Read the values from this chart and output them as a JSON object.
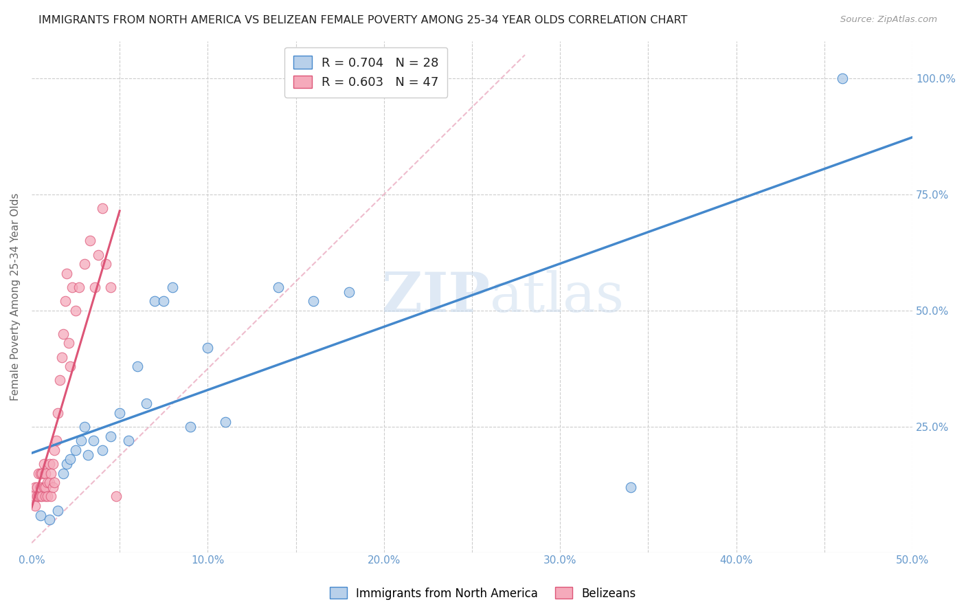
{
  "title": "IMMIGRANTS FROM NORTH AMERICA VS BELIZEAN FEMALE POVERTY AMONG 25-34 YEAR OLDS CORRELATION CHART",
  "source": "Source: ZipAtlas.com",
  "ylabel": "Female Poverty Among 25-34 Year Olds",
  "xlim": [
    0,
    0.5
  ],
  "ylim": [
    -0.02,
    1.08
  ],
  "blue_R": 0.704,
  "blue_N": 28,
  "pink_R": 0.603,
  "pink_N": 47,
  "blue_color": "#b8d0ea",
  "blue_line_color": "#4488cc",
  "pink_color": "#f5aabb",
  "pink_line_color": "#dd5577",
  "watermark_zip": "ZIP",
  "watermark_atlas": "atlas",
  "bg_color": "#ffffff",
  "grid_color": "#cccccc",
  "tick_color": "#6699cc",
  "blue_scatter_x": [
    0.005,
    0.01,
    0.015,
    0.018,
    0.02,
    0.022,
    0.025,
    0.028,
    0.03,
    0.032,
    0.035,
    0.04,
    0.045,
    0.05,
    0.055,
    0.06,
    0.065,
    0.07,
    0.075,
    0.08,
    0.09,
    0.1,
    0.11,
    0.14,
    0.16,
    0.18,
    0.34,
    0.46
  ],
  "blue_scatter_y": [
    0.06,
    0.05,
    0.07,
    0.15,
    0.17,
    0.18,
    0.2,
    0.22,
    0.25,
    0.19,
    0.22,
    0.2,
    0.23,
    0.28,
    0.22,
    0.38,
    0.3,
    0.52,
    0.52,
    0.55,
    0.25,
    0.42,
    0.26,
    0.55,
    0.52,
    0.54,
    0.12,
    1.0
  ],
  "pink_scatter_x": [
    0.001,
    0.002,
    0.002,
    0.003,
    0.003,
    0.004,
    0.004,
    0.005,
    0.005,
    0.005,
    0.006,
    0.006,
    0.007,
    0.007,
    0.008,
    0.008,
    0.008,
    0.009,
    0.009,
    0.01,
    0.01,
    0.011,
    0.011,
    0.012,
    0.012,
    0.013,
    0.013,
    0.014,
    0.015,
    0.016,
    0.017,
    0.018,
    0.019,
    0.02,
    0.021,
    0.022,
    0.023,
    0.025,
    0.027,
    0.03,
    0.033,
    0.036,
    0.038,
    0.04,
    0.042,
    0.045,
    0.048
  ],
  "pink_scatter_y": [
    0.1,
    0.08,
    0.12,
    0.1,
    0.12,
    0.1,
    0.15,
    0.1,
    0.12,
    0.15,
    0.1,
    0.15,
    0.12,
    0.17,
    0.1,
    0.12,
    0.15,
    0.1,
    0.13,
    0.13,
    0.17,
    0.1,
    0.15,
    0.12,
    0.17,
    0.13,
    0.2,
    0.22,
    0.28,
    0.35,
    0.4,
    0.45,
    0.52,
    0.58,
    0.43,
    0.38,
    0.55,
    0.5,
    0.55,
    0.6,
    0.65,
    0.55,
    0.62,
    0.72,
    0.6,
    0.55,
    0.1
  ]
}
